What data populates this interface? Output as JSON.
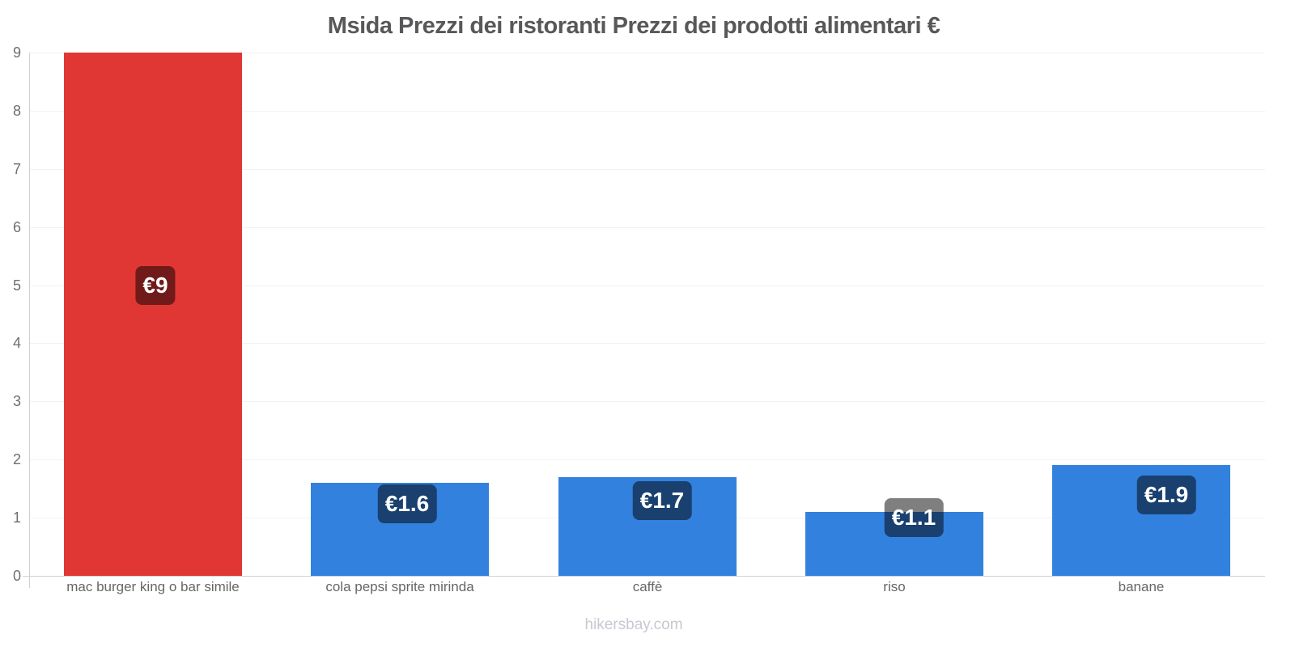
{
  "chart": {
    "title": "Msida Prezzi dei ristoranti Prezzi dei prodotti alimentari €",
    "watermark": "hikersbay.com"
  },
  "chart_data": {
    "type": "bar",
    "title": "Msida Prezzi dei ristoranti Prezzi dei prodotti alimentari €",
    "categories": [
      "mac burger king o bar simile",
      "cola pepsi sprite mirinda",
      "caffè",
      "riso",
      "banane"
    ],
    "values": [
      9,
      1.6,
      1.7,
      1.1,
      1.9
    ],
    "display_values": [
      "€9",
      "€1.6",
      "€1.7",
      "€1.1",
      "€1.9"
    ],
    "bar_colors": [
      "#e03734",
      "#3381de",
      "#3381de",
      "#3381de",
      "#3381de"
    ],
    "value_label_bg": "rgba(0,0,0,0.5)",
    "value_label_text_color": "#ffffff",
    "xlabel": "",
    "ylabel": "",
    "ylim": [
      0,
      9
    ],
    "ytick_step": 1,
    "grid": true,
    "legend_position": "none",
    "currency": "€"
  }
}
